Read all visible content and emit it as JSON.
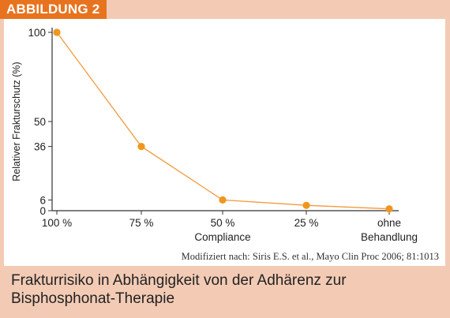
{
  "figure_label": "ABBILDUNG 2",
  "source_note": "Modifiziert nach: Siris E.S. et al., Mayo Clin Proc 2006; 81:1013",
  "caption": {
    "line1": "Frakturrisiko in Abhängigkeit von der Adhärenz zur",
    "line2": "Bisphosphonat-Therapie"
  },
  "colors": {
    "accent": "#e8731e",
    "line": "#f29a3a",
    "marker": "#f0961e",
    "background": "#f3cbb5"
  },
  "chart_data": {
    "type": "line",
    "categories": [
      "100 %",
      "75 %",
      "50 %",
      "25 %",
      "ohne\nBehandlung"
    ],
    "values": [
      100,
      36,
      6,
      3,
      1
    ],
    "xlabel": "Compliance",
    "ylabel": "Relativer Frakturschutz (%)",
    "yticks": [
      100,
      50,
      36,
      6,
      0
    ],
    "ylim": [
      0,
      100
    ],
    "grid": false
  }
}
